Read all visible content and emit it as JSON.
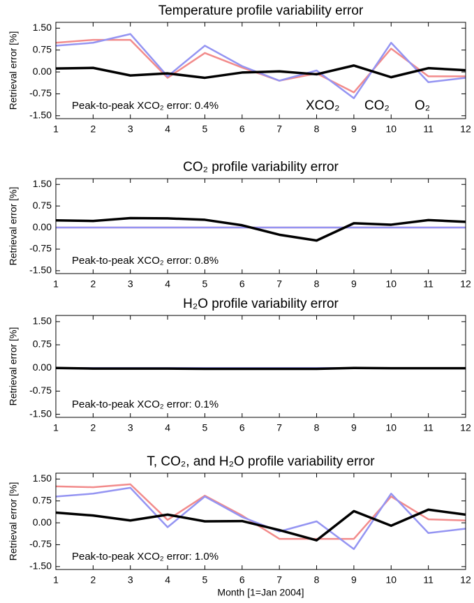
{
  "chart_data": [
    {
      "type": "line",
      "title": "Temperature profile variability error",
      "ylabel": "Retrieval error [%]",
      "annotation": "Peak-to-peak XCO₂ error: 0.4%",
      "legend": true,
      "x": [
        1,
        2,
        3,
        4,
        5,
        6,
        7,
        8,
        9,
        10,
        11,
        12
      ],
      "xlim": [
        1,
        12
      ],
      "xticks": [
        1,
        2,
        3,
        4,
        5,
        6,
        7,
        8,
        9,
        10,
        11,
        12
      ],
      "ylim": [
        -1.6,
        1.7
      ],
      "yticks": [
        {
          "value": 1.5,
          "label": "1.50"
        },
        {
          "value": 0.75,
          "label": "0.75"
        },
        {
          "value": 0,
          "label": "0.00"
        },
        {
          "value": -0.75,
          "label": "-0.75"
        },
        {
          "value": -1.5,
          "label": "-1.50"
        }
      ],
      "series": [
        {
          "name": "XCO₂",
          "color": "#000000",
          "values": [
            0.12,
            0.14,
            -0.12,
            -0.05,
            -0.2,
            -0.02,
            0.02,
            -0.08,
            0.22,
            -0.18,
            0.13,
            0.06
          ]
        },
        {
          "name": "CO₂",
          "color": "#f28b8b",
          "values": [
            1.0,
            1.1,
            1.1,
            -0.2,
            0.65,
            0.15,
            -0.3,
            -0.05,
            -0.7,
            0.8,
            -0.15,
            -0.15
          ]
        },
        {
          "name": "O₂",
          "color": "#9494f2",
          "values": [
            0.9,
            1.0,
            1.3,
            -0.15,
            0.9,
            0.2,
            -0.3,
            0.05,
            -0.9,
            1.0,
            -0.35,
            -0.2
          ]
        }
      ]
    },
    {
      "type": "line",
      "title": "CO₂ profile variability error",
      "ylabel": "Retrieval error [%]",
      "annotation": "Peak-to-peak XCO₂ error: 0.8%",
      "x": [
        1,
        2,
        3,
        4,
        5,
        6,
        7,
        8,
        9,
        10,
        11,
        12
      ],
      "xlim": [
        1,
        12
      ],
      "xticks": [
        1,
        2,
        3,
        4,
        5,
        6,
        7,
        8,
        9,
        10,
        11,
        12
      ],
      "ylim": [
        -1.6,
        1.7
      ],
      "yticks": [
        {
          "value": 1.5,
          "label": "1.50"
        },
        {
          "value": 0.75,
          "label": "0.75"
        },
        {
          "value": 0,
          "label": "0.00"
        },
        {
          "value": -0.75,
          "label": "-0.75"
        },
        {
          "value": -1.5,
          "label": "-1.50"
        }
      ],
      "series": [
        {
          "color": "#000000",
          "values": [
            0.25,
            0.23,
            0.33,
            0.32,
            0.27,
            0.08,
            -0.25,
            -0.45,
            0.15,
            0.1,
            0.26,
            0.2
          ]
        },
        {
          "color": "#f28b8b",
          "values": [
            0,
            0,
            0,
            0,
            0,
            0,
            0,
            0,
            0,
            0,
            0,
            0
          ]
        },
        {
          "color": "#9494f2",
          "values": [
            0,
            0,
            0,
            0,
            0,
            0,
            0,
            0,
            0,
            0,
            0,
            0
          ]
        }
      ]
    },
    {
      "type": "line",
      "title": "H₂O profile variability error",
      "ylabel": "Retrieval error [%]",
      "annotation": "Peak-to-peak XCO₂ error: 0.1%",
      "x": [
        1,
        2,
        3,
        4,
        5,
        6,
        7,
        8,
        9,
        10,
        11,
        12
      ],
      "xlim": [
        1,
        12
      ],
      "xticks": [
        1,
        2,
        3,
        4,
        5,
        6,
        7,
        8,
        9,
        10,
        11,
        12
      ],
      "ylim": [
        -1.6,
        1.7
      ],
      "yticks": [
        {
          "value": 1.5,
          "label": "1.50"
        },
        {
          "value": 0.75,
          "label": "0.75"
        },
        {
          "value": 0,
          "label": "0.00"
        },
        {
          "value": -0.75,
          "label": "-0.75"
        },
        {
          "value": -1.5,
          "label": "-1.50"
        }
      ],
      "series": [
        {
          "color": "#000000",
          "values": [
            0,
            -0.02,
            -0.02,
            -0.02,
            -0.03,
            -0.03,
            -0.03,
            -0.03,
            0,
            -0.01,
            -0.01,
            -0.01
          ]
        },
        {
          "color": "#f28b8b",
          "values": [
            0,
            0,
            0,
            0,
            0,
            0,
            0,
            0,
            0,
            0,
            0,
            0
          ]
        },
        {
          "color": "#9494f2",
          "values": [
            0,
            0,
            0,
            0,
            0,
            0,
            0,
            0,
            0,
            0,
            0,
            0
          ]
        }
      ]
    },
    {
      "type": "line",
      "title": "T, CO₂, and H₂O profile variability error",
      "ylabel": "Retrieval error [%]",
      "xlabel": "Month [1=Jan 2004]",
      "annotation": "Peak-to-peak XCO₂ error: 1.0%",
      "x": [
        1,
        2,
        3,
        4,
        5,
        6,
        7,
        8,
        9,
        10,
        11,
        12
      ],
      "xlim": [
        1,
        12
      ],
      "xticks": [
        1,
        2,
        3,
        4,
        5,
        6,
        7,
        8,
        9,
        10,
        11,
        12
      ],
      "ylim": [
        -1.6,
        1.7
      ],
      "yticks": [
        {
          "value": 1.5,
          "label": "1.50"
        },
        {
          "value": 0.75,
          "label": "0.75"
        },
        {
          "value": 0,
          "label": "0.00"
        },
        {
          "value": -0.75,
          "label": "-0.75"
        },
        {
          "value": -1.5,
          "label": "-1.50"
        }
      ],
      "series": [
        {
          "color": "#000000",
          "values": [
            0.35,
            0.25,
            0.08,
            0.28,
            0.05,
            0.06,
            -0.25,
            -0.6,
            0.4,
            -0.1,
            0.45,
            0.28
          ]
        },
        {
          "color": "#f28b8b",
          "values": [
            1.25,
            1.22,
            1.32,
            0.1,
            0.93,
            0.25,
            -0.55,
            -0.55,
            -0.55,
            0.9,
            0.12,
            0.08
          ]
        },
        {
          "color": "#9494f2",
          "values": [
            0.9,
            1.0,
            1.2,
            -0.15,
            0.9,
            0.2,
            -0.3,
            0.05,
            -0.9,
            1.0,
            -0.35,
            -0.2
          ]
        }
      ]
    }
  ]
}
